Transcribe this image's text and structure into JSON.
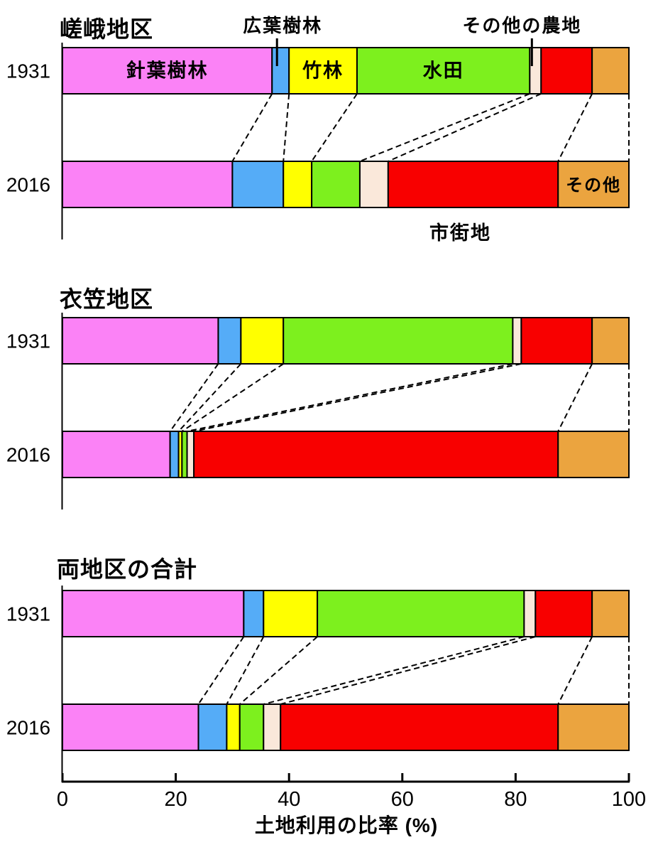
{
  "figure": {
    "background": "#ffffff",
    "description_visible_text_only": true
  },
  "palette": {
    "pink": "#FB82F6",
    "blue": "#55ACF7",
    "yellow": "#FFFF00",
    "green": "#7DF01E",
    "cream": "#FAE8DA",
    "red": "#F80000",
    "orange": "#EBA43F",
    "line": "#000000"
  },
  "chart_data": [
    {
      "type": "bar",
      "orientation": "horizontal",
      "stacked": true,
      "title": "嵯峨地区",
      "categories": [
        "1931",
        "2016"
      ],
      "xlim": [
        0,
        100
      ],
      "series": [
        {
          "name": "針葉樹林",
          "color_key": "pink",
          "values": [
            37,
            30
          ]
        },
        {
          "name": "広葉樹林",
          "color_key": "blue",
          "values": [
            3,
            9
          ]
        },
        {
          "name": "竹林",
          "color_key": "yellow",
          "values": [
            12,
            5
          ]
        },
        {
          "name": "水田",
          "color_key": "green",
          "values": [
            30.5,
            8.5
          ]
        },
        {
          "name": "その他の農地",
          "color_key": "cream",
          "values": [
            2,
            5
          ]
        },
        {
          "name": "市街地",
          "color_key": "red",
          "values": [
            9,
            30
          ]
        },
        {
          "name": "その他",
          "color_key": "orange",
          "values": [
            6.5,
            12.5
          ]
        }
      ],
      "annotations": {
        "inbar": [
          {
            "text": "針葉樹林",
            "bar": 0,
            "series": 0,
            "font": 27
          },
          {
            "text": "竹林",
            "bar": 0,
            "series": 2,
            "font": 27
          },
          {
            "text": "水田",
            "bar": 0,
            "series": 3,
            "font": 27
          },
          {
            "text": "その他",
            "bar": 1,
            "series": 6,
            "font": 24
          }
        ],
        "callouts_top": [
          {
            "text": "広葉樹林",
            "series": 1
          },
          {
            "text": "その他の農地",
            "series": 4
          }
        ],
        "below": [
          {
            "text": "市街地",
            "bar": 1,
            "series": 5
          }
        ]
      }
    },
    {
      "type": "bar",
      "orientation": "horizontal",
      "stacked": true,
      "title": "衣笠地区",
      "categories": [
        "1931",
        "2016"
      ],
      "xlim": [
        0,
        100
      ],
      "series": [
        {
          "name": "針葉樹林",
          "color_key": "pink",
          "values": [
            27.5,
            19
          ]
        },
        {
          "name": "広葉樹林",
          "color_key": "blue",
          "values": [
            4,
            1.5
          ]
        },
        {
          "name": "竹林",
          "color_key": "yellow",
          "values": [
            7.5,
            0.6
          ]
        },
        {
          "name": "水田",
          "color_key": "green",
          "values": [
            40.5,
            0.9
          ]
        },
        {
          "name": "その他の農地",
          "color_key": "cream",
          "values": [
            1.5,
            1.2
          ]
        },
        {
          "name": "市街地",
          "color_key": "red",
          "values": [
            12.5,
            64.3
          ]
        },
        {
          "name": "その他",
          "color_key": "orange",
          "values": [
            6.5,
            12.5
          ]
        }
      ],
      "annotations": {
        "inbar": [],
        "callouts_top": [],
        "below": []
      }
    },
    {
      "type": "bar",
      "orientation": "horizontal",
      "stacked": true,
      "title": "両地区の合計",
      "categories": [
        "1931",
        "2016"
      ],
      "xlim": [
        0,
        100
      ],
      "series": [
        {
          "name": "針葉樹林",
          "color_key": "pink",
          "values": [
            32,
            24
          ]
        },
        {
          "name": "広葉樹林",
          "color_key": "blue",
          "values": [
            3.5,
            5
          ]
        },
        {
          "name": "竹林",
          "color_key": "yellow",
          "values": [
            9.5,
            2.3
          ]
        },
        {
          "name": "水田",
          "color_key": "green",
          "values": [
            36.5,
            4.2
          ]
        },
        {
          "name": "その他の農地",
          "color_key": "cream",
          "values": [
            2,
            3
          ]
        },
        {
          "name": "市街地",
          "color_key": "red",
          "values": [
            10,
            49
          ]
        },
        {
          "name": "その他",
          "color_key": "orange",
          "values": [
            6.5,
            12.5
          ]
        }
      ],
      "annotations": {
        "inbar": [],
        "callouts_top": [],
        "below": []
      }
    }
  ],
  "xaxis": {
    "range": [
      0,
      100
    ],
    "ticks": [
      "0",
      "20",
      "40",
      "60",
      "80",
      "100"
    ],
    "tick_values": [
      0,
      20,
      40,
      60,
      80,
      100
    ],
    "label": "土地利用の比率 (%)"
  }
}
